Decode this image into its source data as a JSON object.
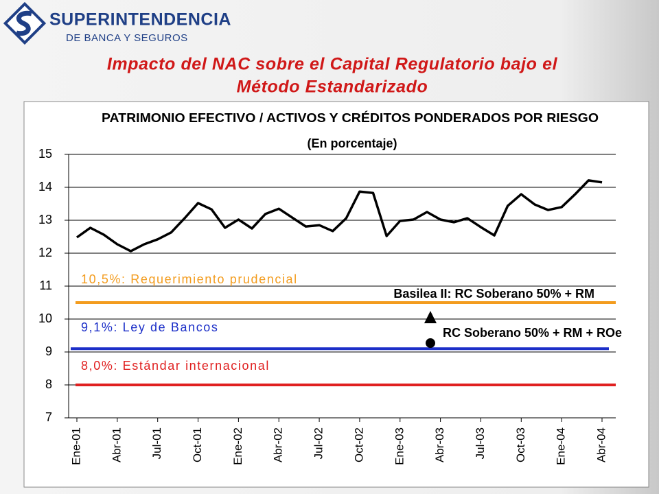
{
  "logo": {
    "line1": "SUPERINTENDENCIA",
    "line2": "DE BANCA Y SEGUROS"
  },
  "slide_title": [
    "Impacto del NAC sobre el Capital Regulatorio bajo el",
    "Método Estandarizado"
  ],
  "chart_data": {
    "type": "line",
    "title": "PATRIMONIO EFECTIVO / ACTIVOS Y CRÉDITOS PONDERADOS POR RIESGO",
    "subtitle": "(En porcentaje)",
    "categories": [
      "Ene-01",
      null,
      null,
      "Abr-01",
      null,
      null,
      "Jul-01",
      null,
      null,
      "Oct-01",
      null,
      null,
      "Ene-02",
      null,
      null,
      "Abr-02",
      null,
      null,
      "Jul-02",
      null,
      null,
      "Oct-02",
      null,
      null,
      "Ene-03",
      null,
      null,
      "Abr-03",
      null,
      null,
      "Jul-03",
      null,
      null,
      "Oct-03",
      null,
      null,
      "Ene-04",
      null,
      null,
      "Abr-04"
    ],
    "values": [
      12.48,
      12.77,
      12.56,
      12.27,
      12.06,
      12.27,
      12.42,
      12.63,
      13.06,
      13.52,
      13.33,
      12.77,
      13.02,
      12.75,
      13.19,
      13.35,
      13.08,
      12.81,
      12.85,
      12.67,
      13.06,
      13.87,
      13.83,
      12.52,
      12.98,
      13.02,
      13.25,
      13.02,
      12.94,
      13.06,
      12.79,
      12.54,
      13.44,
      13.79,
      13.48,
      13.31,
      13.4,
      13.79,
      14.21,
      14.15
    ],
    "color": "#000000",
    "ylim": [
      7,
      15
    ],
    "yticks": [
      7,
      8,
      9,
      10,
      11,
      12,
      13,
      14,
      15
    ],
    "grid": true,
    "reference_lines": [
      {
        "label": "10,5%: Requerimiento prudencial",
        "value": 10.5,
        "color": "#f39c1e"
      },
      {
        "label": "9,1%: Ley de Bancos",
        "value": 9.1,
        "color": "#1c2fc8"
      },
      {
        "label": "8,0%: Estándar internacional",
        "value": 8.0,
        "color": "#e02020"
      }
    ],
    "markers": [
      {
        "label": "Basilea II: RC Soberano 50% + RM",
        "value": 10.04,
        "shape": "triangle"
      },
      {
        "label": "RC Soberano 50% + RM + ROe",
        "value": 9.27,
        "shape": "circle"
      }
    ]
  }
}
